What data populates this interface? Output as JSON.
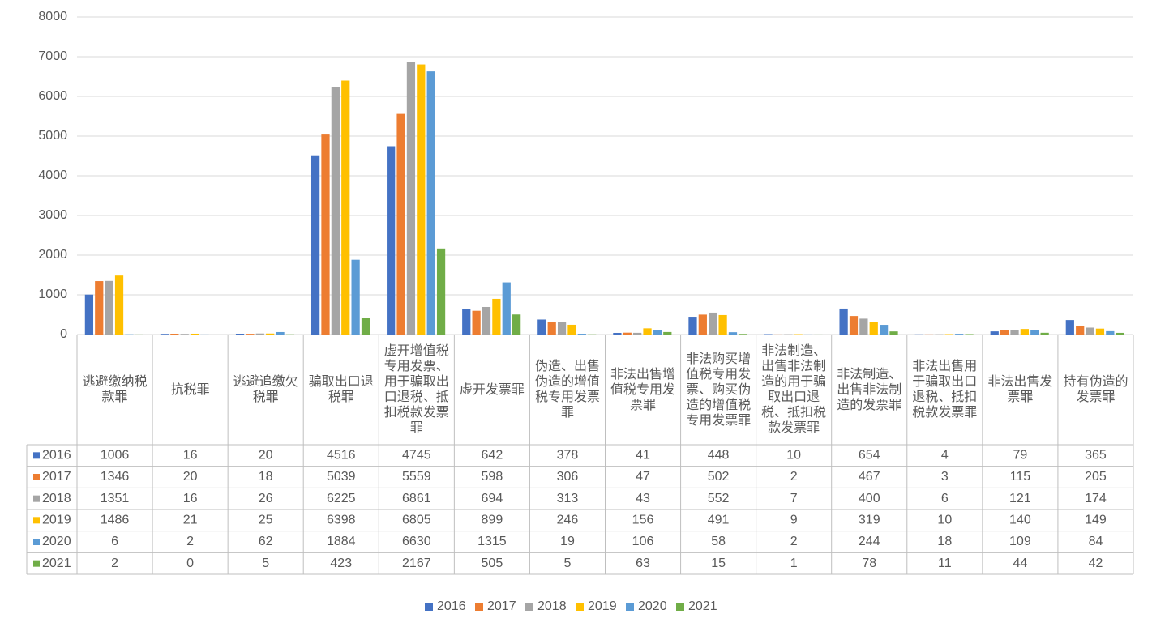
{
  "chart_data": {
    "type": "bar",
    "categories": [
      "逃避缴纳税款罪",
      "抗税罪",
      "逃避追缴欠税罪",
      "骗取出口退税罪",
      "虚开增值税专用发票、用于骗取出口退税、抵扣税款发票罪",
      "虚开发票罪",
      "伪造、出售伪造的增值税专用发票罪",
      "非法出售增值税专用发票罪",
      "非法购买增值税专用发票、购买伪造的增值税专用发票罪",
      "非法制造、出售非法制造的用于骗取出口退税、抵扣税款发票罪",
      "非法制造、出售非法制造的发票罪",
      "非法出售用于骗取出口退税、抵扣税款发票罪",
      "非法出售发票罪",
      "持有伪造的发票罪"
    ],
    "series": [
      {
        "name": "2016",
        "color": "#4472c4",
        "values": [
          1006,
          16,
          20,
          4516,
          4745,
          642,
          378,
          41,
          448,
          10,
          654,
          4,
          79,
          365
        ]
      },
      {
        "name": "2017",
        "color": "#ed7d31",
        "values": [
          1346,
          20,
          18,
          5039,
          5559,
          598,
          306,
          47,
          502,
          2,
          467,
          3,
          115,
          205
        ]
      },
      {
        "name": "2018",
        "color": "#a5a5a5",
        "values": [
          1351,
          16,
          26,
          6225,
          6861,
          694,
          313,
          43,
          552,
          7,
          400,
          6,
          121,
          174
        ]
      },
      {
        "name": "2019",
        "color": "#ffc000",
        "values": [
          1486,
          21,
          25,
          6398,
          6805,
          899,
          246,
          156,
          491,
          9,
          319,
          10,
          140,
          149
        ]
      },
      {
        "name": "2020",
        "color": "#5b9bd5",
        "values": [
          6,
          2,
          62,
          1884,
          6630,
          1315,
          19,
          106,
          58,
          2,
          244,
          18,
          109,
          84
        ]
      },
      {
        "name": "2021",
        "color": "#70ad47",
        "values": [
          2,
          0,
          5,
          423,
          2167,
          505,
          5,
          63,
          15,
          1,
          78,
          11,
          44,
          42
        ]
      }
    ],
    "ylim": [
      0,
      8000
    ],
    "yticks": [
      0,
      1000,
      2000,
      3000,
      4000,
      5000,
      6000,
      7000,
      8000
    ],
    "grid": true,
    "legend": "bottom",
    "data_table": true
  }
}
